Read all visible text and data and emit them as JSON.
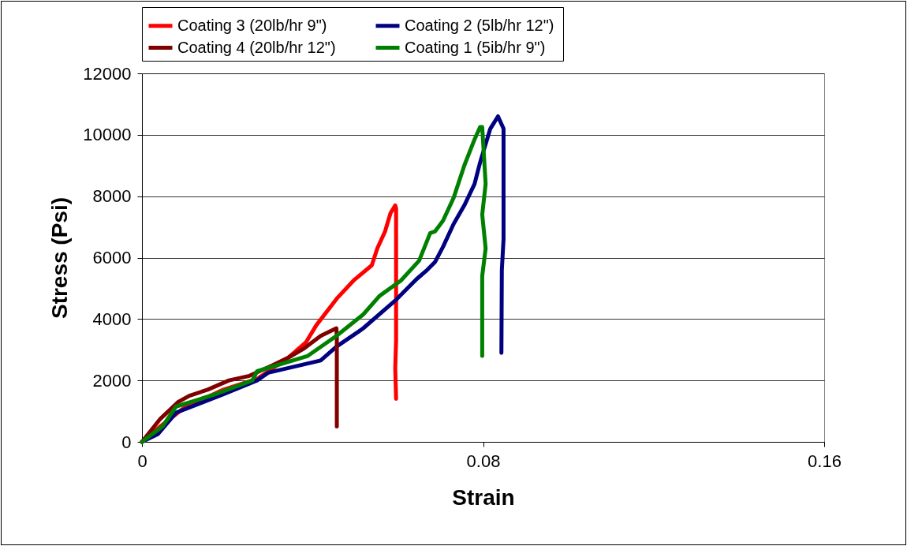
{
  "chart_data": {
    "type": "line",
    "xlabel": "Strain",
    "ylabel": "Stress (Psi)",
    "xlim": [
      0,
      0.16
    ],
    "xticks": [
      0,
      0.08,
      0.16
    ],
    "ylim": [
      0,
      12000
    ],
    "yticks": [
      0,
      2000,
      4000,
      6000,
      8000,
      10000,
      12000
    ],
    "grid": "y",
    "legend": "top",
    "marker": "none",
    "line_style": "solid",
    "series": [
      {
        "name": "Coating 3 (20lb/hr 9\")",
        "color": "#ff0000",
        "x": [
          0,
          0.0043,
          0.0098,
          0.0191,
          0.027,
          0.0344,
          0.0385,
          0.0409,
          0.0459,
          0.0496,
          0.0539,
          0.0552,
          0.057,
          0.0583,
          0.0594,
          0.0596,
          0.0596,
          0.0594,
          0.0596
        ],
        "values": [
          0,
          500,
          1100,
          1700,
          2050,
          2750,
          3250,
          3800,
          4700,
          5250,
          5750,
          6300,
          6850,
          7450,
          7700,
          7600,
          3300,
          2400,
          1400
        ]
      },
      {
        "name": "Coating 2 (5lb/hr  12\")",
        "color": "#000080",
        "x": [
          0,
          0.0037,
          0.008,
          0.0191,
          0.027,
          0.0296,
          0.0419,
          0.0456,
          0.0509,
          0.0519,
          0.0594,
          0.0644,
          0.0669,
          0.0687,
          0.0706,
          0.0731,
          0.0756,
          0.078,
          0.0793,
          0.0817,
          0.0835,
          0.0848,
          0.0848,
          0.0844,
          0.0843
        ],
        "values": [
          0,
          250,
          950,
          1550,
          2000,
          2250,
          2650,
          3100,
          3600,
          3700,
          4600,
          5300,
          5600,
          5850,
          6350,
          7100,
          7700,
          8400,
          9100,
          10200,
          10600,
          10200,
          6600,
          5600,
          2900
        ]
      },
      {
        "name": "Coating 4 (20lb/hr 12\")",
        "color": "#800000",
        "x": [
          0,
          0.0043,
          0.0085,
          0.0111,
          0.0154,
          0.0204,
          0.0252,
          0.0307,
          0.0344,
          0.0381,
          0.0419,
          0.0456,
          0.0457,
          0.0457
        ],
        "values": [
          0,
          750,
          1300,
          1500,
          1700,
          2000,
          2150,
          2500,
          2750,
          3050,
          3450,
          3700,
          3400,
          500
        ]
      },
      {
        "name": "Coating 1 (5ib/hr 9\")",
        "color": "#008000",
        "x": [
          0,
          0.0048,
          0.008,
          0.0172,
          0.0259,
          0.027,
          0.0389,
          0.0456,
          0.0519,
          0.0557,
          0.0607,
          0.065,
          0.0676,
          0.0687,
          0.0706,
          0.0731,
          0.0756,
          0.078,
          0.0793,
          0.0798,
          0.0806,
          0.0798,
          0.0806,
          0.0798,
          0.0798
        ],
        "values": [
          0,
          500,
          1150,
          1550,
          2000,
          2300,
          2800,
          3450,
          4150,
          4750,
          5250,
          5900,
          6800,
          6850,
          7200,
          7950,
          9000,
          9850,
          10250,
          10250,
          8400,
          7400,
          6300,
          5400,
          2800
        ]
      }
    ]
  }
}
